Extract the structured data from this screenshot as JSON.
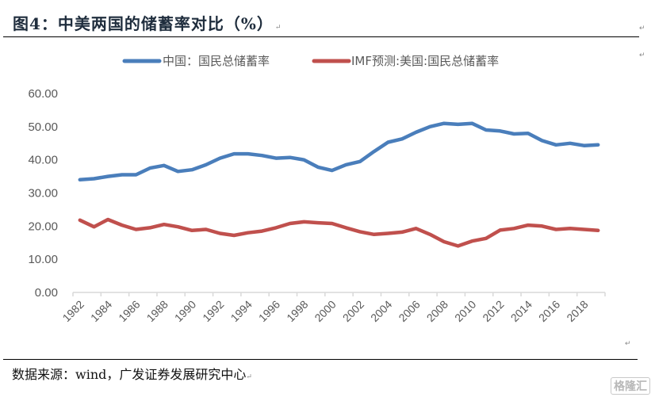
{
  "figure": {
    "title": "图4：中美两国的储蓄率对比（%）",
    "source": "数据来源：wind，广发证券发展研究中心",
    "watermark": "格隆汇",
    "paragraph_mark": "↵"
  },
  "chart_data": {
    "type": "line",
    "title": "图4：中美两国的储蓄率对比（%）",
    "xlabel": "",
    "ylabel": "",
    "ylim": [
      0,
      60
    ],
    "yticks": [
      "0.00",
      "10.00",
      "20.00",
      "30.00",
      "40.00",
      "50.00",
      "60.00"
    ],
    "xticks": [
      "1982",
      "1984",
      "1986",
      "1988",
      "1990",
      "1992",
      "1994",
      "1996",
      "1998",
      "2000",
      "2002",
      "2004",
      "2006",
      "2008",
      "2010",
      "2012",
      "2014",
      "2016",
      "2018"
    ],
    "x": [
      1982,
      1983,
      1984,
      1985,
      1986,
      1987,
      1988,
      1989,
      1990,
      1991,
      1992,
      1993,
      1994,
      1995,
      1996,
      1997,
      1998,
      1999,
      2000,
      2001,
      2002,
      2003,
      2004,
      2005,
      2006,
      2007,
      2008,
      2009,
      2010,
      2011,
      2012,
      2013,
      2014,
      2015,
      2016,
      2017,
      2018,
      2019
    ],
    "grid": false,
    "legend_position": "top",
    "series": [
      {
        "name": "中国：国民总储蓄率",
        "color": "#4a7ebb",
        "values": [
          34.0,
          34.3,
          35.0,
          35.5,
          35.5,
          37.5,
          38.3,
          36.5,
          37.0,
          38.5,
          40.5,
          41.8,
          41.8,
          41.3,
          40.5,
          40.7,
          40.0,
          37.8,
          36.8,
          38.5,
          39.5,
          42.5,
          45.3,
          46.3,
          48.3,
          50.0,
          51.0,
          50.7,
          51.0,
          49.0,
          48.7,
          47.8,
          48.0,
          45.8,
          44.5,
          45.0,
          44.3,
          44.5
        ]
      },
      {
        "name": "IMF预测:美国:国民总储蓄率",
        "color": "#c0504d",
        "values": [
          21.8,
          19.8,
          22.0,
          20.3,
          19.0,
          19.5,
          20.5,
          19.8,
          18.7,
          19.0,
          17.8,
          17.2,
          18.0,
          18.5,
          19.5,
          20.8,
          21.3,
          21.0,
          20.8,
          19.5,
          18.3,
          17.5,
          17.8,
          18.2,
          19.3,
          17.5,
          15.3,
          14.0,
          15.5,
          16.3,
          18.8,
          19.3,
          20.3,
          20.0,
          19.0,
          19.3,
          19.0,
          18.7
        ]
      }
    ]
  }
}
